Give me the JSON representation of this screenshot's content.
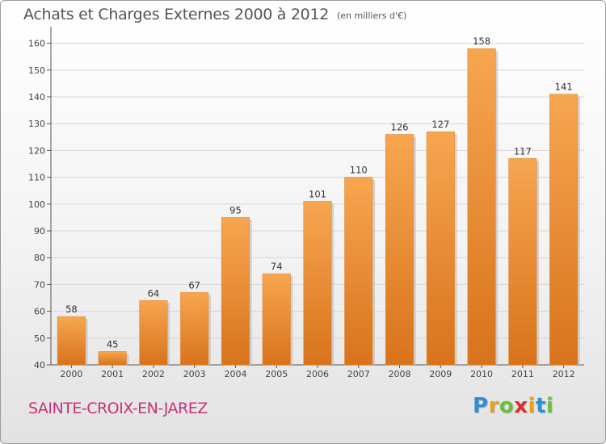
{
  "header": {
    "title": "Achats et Charges Externes 2000 à 2012",
    "unit": "(en milliers d'€)"
  },
  "footer": {
    "commune": "SAINTE-CROIX-EN-JAREZ",
    "logo_letters": [
      {
        "ch": "P",
        "color": "#2e8fd0"
      },
      {
        "ch": "r",
        "color": "#e8a020"
      },
      {
        "ch": "o",
        "color": "#6abf3a"
      },
      {
        "ch": "x",
        "color": "#d8322a"
      },
      {
        "ch": "i",
        "color": "#e8a020"
      },
      {
        "ch": "t",
        "color": "#2e8fd0"
      },
      {
        "ch": "i",
        "color": "#6abf3a"
      }
    ]
  },
  "chart_data": {
    "type": "bar",
    "title": "Achats et Charges Externes 2000 à 2012",
    "subtitle": "(en milliers d'€)",
    "xlabel": "",
    "ylabel": "",
    "categories": [
      "2000",
      "2001",
      "2002",
      "2003",
      "2004",
      "2005",
      "2006",
      "2007",
      "2008",
      "2009",
      "2010",
      "2011",
      "2012"
    ],
    "values": [
      58,
      45,
      64,
      67,
      95,
      74,
      101,
      110,
      126,
      127,
      158,
      117,
      141
    ],
    "ylim": [
      40,
      165
    ],
    "yticks": [
      40,
      50,
      60,
      70,
      80,
      90,
      100,
      110,
      120,
      130,
      140,
      150,
      160
    ],
    "grid": true,
    "bar_color_top": "#f7a650",
    "bar_color_bottom": "#d8731c"
  }
}
